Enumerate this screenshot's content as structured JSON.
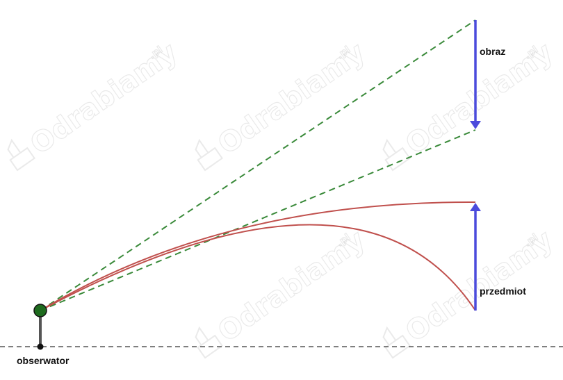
{
  "labels": {
    "image": "obraz",
    "object": "przedmiot",
    "observer": "obserwator"
  },
  "watermark": {
    "text": "Odrabiamy",
    "suffix": ".pl"
  },
  "colors": {
    "arrow": "#4b4bdc",
    "sight_lines": "#3a8a3a",
    "ray_curves": "#c0504d",
    "ground": "#555555",
    "observer_eye": "#1e6b1e"
  }
}
